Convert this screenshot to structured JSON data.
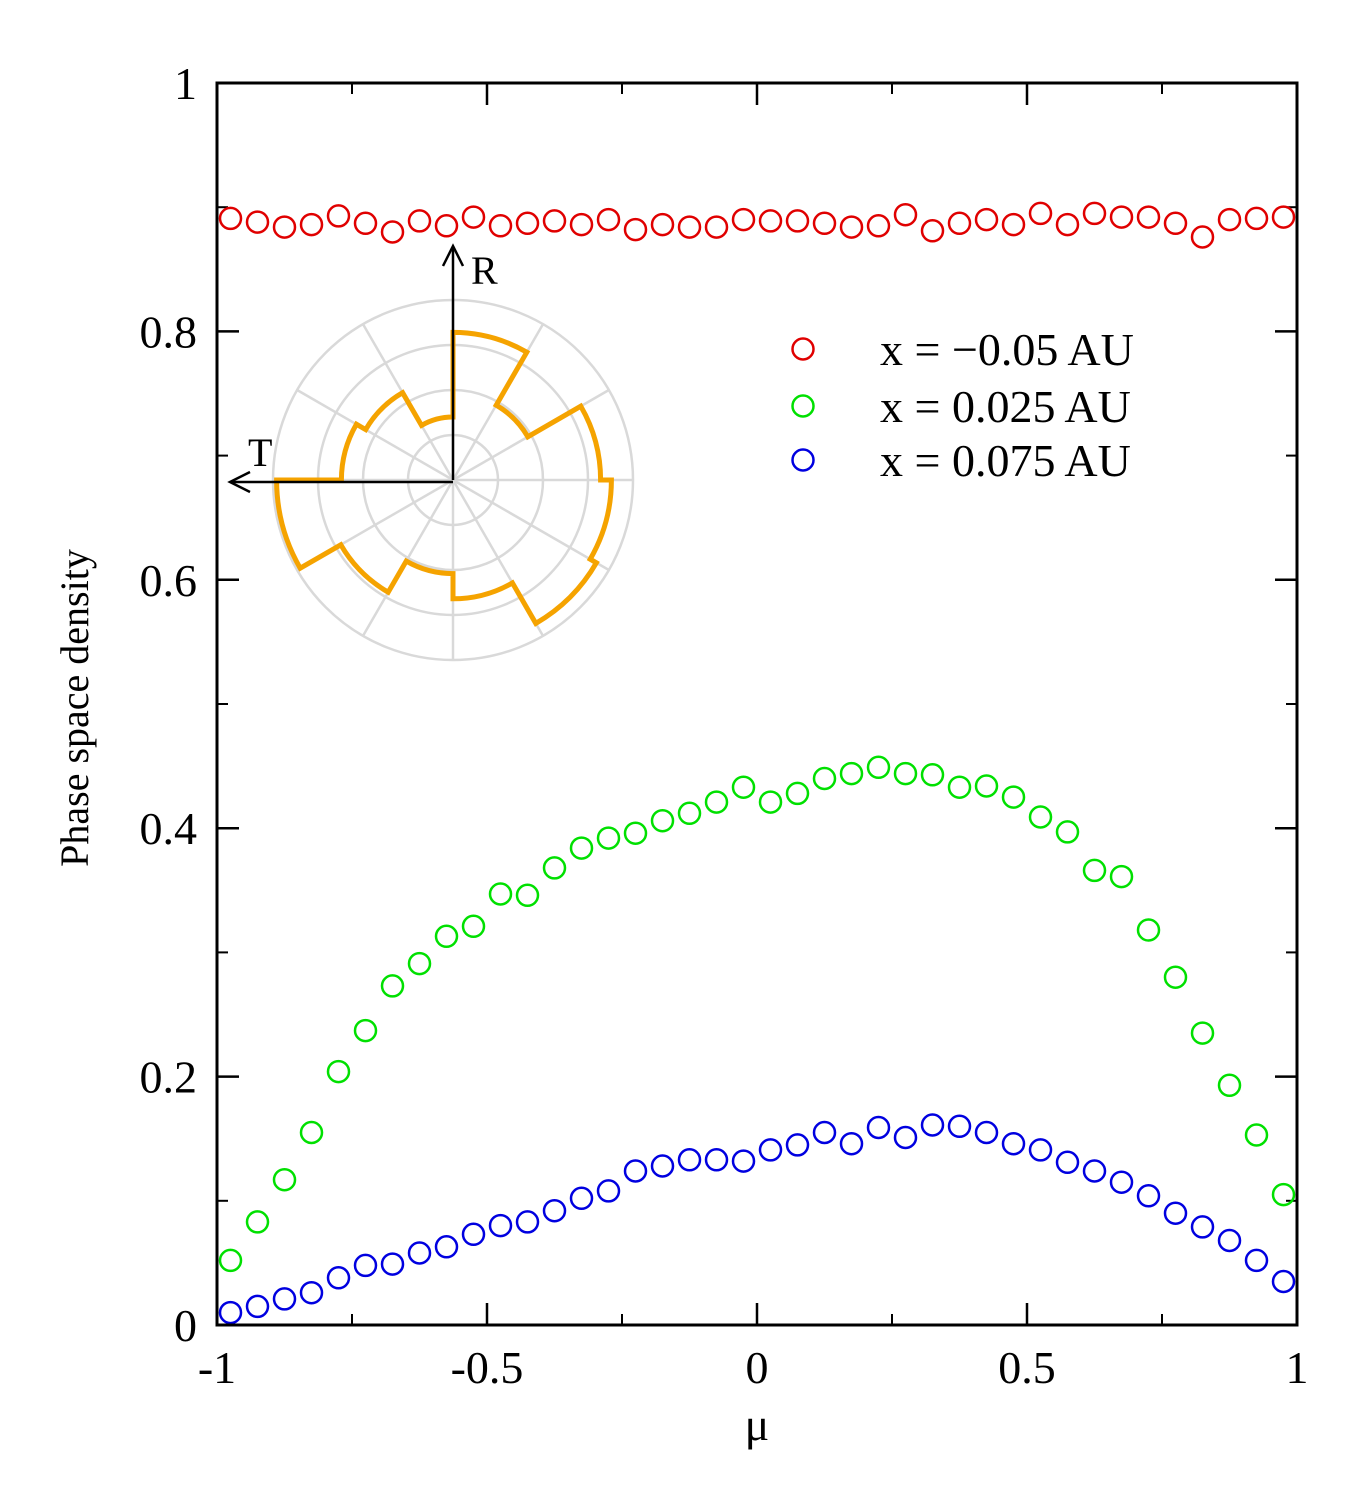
{
  "chart_data": {
    "type": "scatter",
    "xlabel": "μ",
    "ylabel": "Phase space density",
    "xlim": [
      -1,
      1
    ],
    "ylim": [
      0,
      1
    ],
    "x_ticks": [
      {
        "value": -1,
        "label": "-1"
      },
      {
        "value": -0.5,
        "label": "-0.5"
      },
      {
        "value": 0,
        "label": "0"
      },
      {
        "value": 0.5,
        "label": "0.5"
      },
      {
        "value": 1,
        "label": "1"
      }
    ],
    "y_ticks": [
      {
        "value": 0,
        "label": "0"
      },
      {
        "value": 0.2,
        "label": "0.2"
      },
      {
        "value": 0.4,
        "label": "0.4"
      },
      {
        "value": 0.6,
        "label": "0.6"
      },
      {
        "value": 0.8,
        "label": "0.8"
      },
      {
        "value": 1,
        "label": "1"
      }
    ],
    "x": [
      -0.975,
      -0.925,
      -0.875,
      -0.825,
      -0.775,
      -0.725,
      -0.675,
      -0.625,
      -0.575,
      -0.525,
      -0.475,
      -0.425,
      -0.375,
      -0.325,
      -0.275,
      -0.225,
      -0.175,
      -0.125,
      -0.075,
      -0.025,
      0.025,
      0.075,
      0.125,
      0.175,
      0.225,
      0.275,
      0.325,
      0.375,
      0.425,
      0.475,
      0.525,
      0.575,
      0.625,
      0.675,
      0.725,
      0.775,
      0.825,
      0.875,
      0.925,
      0.975
    ],
    "series": [
      {
        "name": "x = −0.05 AU",
        "color": "#e00000",
        "marker": "open-circle",
        "values": [
          0.891,
          0.888,
          0.884,
          0.886,
          0.893,
          0.887,
          0.88,
          0.889,
          0.885,
          0.892,
          0.885,
          0.887,
          0.889,
          0.886,
          0.89,
          0.882,
          0.886,
          0.884,
          0.884,
          0.89,
          0.889,
          0.889,
          0.887,
          0.884,
          0.885,
          0.894,
          0.881,
          0.887,
          0.89,
          0.886,
          0.895,
          0.886,
          0.895,
          0.892,
          0.892,
          0.887,
          0.876,
          0.89,
          0.891,
          0.892
        ]
      },
      {
        "name": "x = 0.025 AU",
        "color": "#00e000",
        "marker": "open-circle",
        "values": [
          0.052,
          0.083,
          0.117,
          0.155,
          0.204,
          0.237,
          0.273,
          0.291,
          0.313,
          0.321,
          0.347,
          0.346,
          0.368,
          0.384,
          0.392,
          0.396,
          0.406,
          0.412,
          0.421,
          0.433,
          0.421,
          0.428,
          0.44,
          0.444,
          0.449,
          0.444,
          0.443,
          0.433,
          0.434,
          0.425,
          0.409,
          0.397,
          0.366,
          0.361,
          0.318,
          0.28,
          0.235,
          0.193,
          0.153,
          0.105
        ]
      },
      {
        "name": "x = 0.075 AU",
        "color": "#0000e0",
        "marker": "open-circle",
        "values": [
          0.01,
          0.015,
          0.021,
          0.026,
          0.038,
          0.048,
          0.049,
          0.058,
          0.063,
          0.073,
          0.08,
          0.083,
          0.092,
          0.102,
          0.108,
          0.124,
          0.128,
          0.133,
          0.133,
          0.132,
          0.141,
          0.145,
          0.155,
          0.146,
          0.159,
          0.151,
          0.161,
          0.16,
          0.155,
          0.146,
          0.141,
          0.131,
          0.124,
          0.115,
          0.104,
          0.09,
          0.079,
          0.068,
          0.052,
          0.035
        ]
      }
    ],
    "legend_position": "upper-right",
    "inset": {
      "type": "polar-histogram",
      "axis_labels": [
        "R",
        "T"
      ],
      "color": "#f5a300",
      "sector_deg": 30,
      "radii": [
        0.82,
        0.48,
        0.82,
        0.88,
        0.92,
        0.66,
        0.52,
        0.72,
        0.98,
        0.62,
        0.56,
        0.35
      ]
    }
  }
}
